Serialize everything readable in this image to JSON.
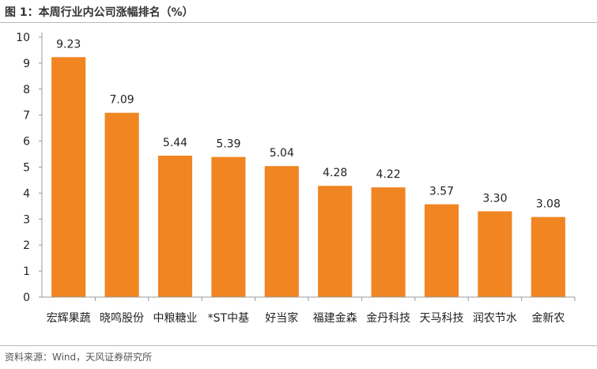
{
  "header": {
    "title": "图 1：本周行业内公司涨幅排名（%）"
  },
  "footer": {
    "source": "资料来源：Wind，天风证券研究所"
  },
  "colors": {
    "bar": "#F08522",
    "axis": "#9a9a9a",
    "rule": "#b8b8b8"
  },
  "chart_data": {
    "type": "bar",
    "title": "本周行业内公司涨幅排名（%）",
    "categories": [
      "宏辉果蔬",
      "晓鸣股份",
      "中粮糖业",
      "*ST中基",
      "好当家",
      "福建金森",
      "金丹科技",
      "天马科技",
      "润农节水",
      "金新农"
    ],
    "values": [
      9.23,
      7.09,
      5.44,
      5.39,
      5.04,
      4.28,
      4.22,
      3.57,
      3.3,
      3.08
    ],
    "value_labels": [
      "9.23",
      "7.09",
      "5.44",
      "5.39",
      "5.04",
      "4.28",
      "4.22",
      "3.57",
      "3.30",
      "3.08"
    ],
    "ylim": [
      0,
      10
    ],
    "yticks": [
      0,
      1,
      2,
      3,
      4,
      5,
      6,
      7,
      8,
      9,
      10
    ],
    "grid": false,
    "legend": "none"
  }
}
